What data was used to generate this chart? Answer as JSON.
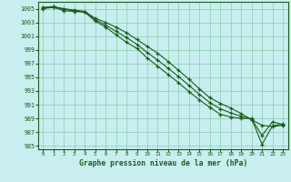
{
  "x": [
    0,
    1,
    2,
    3,
    4,
    5,
    6,
    7,
    8,
    9,
    10,
    11,
    12,
    13,
    14,
    15,
    16,
    17,
    18,
    19,
    20,
    21,
    22,
    23
  ],
  "line1": [
    1005.2,
    1005.3,
    1005.0,
    1004.8,
    1004.6,
    1003.6,
    1003.0,
    1002.3,
    1001.5,
    1000.5,
    999.5,
    998.5,
    997.3,
    996.0,
    994.7,
    993.3,
    992.0,
    991.2,
    990.5,
    989.7,
    988.8,
    988.0,
    987.8,
    988.0
  ],
  "line2": [
    1005.0,
    1005.2,
    1004.7,
    1004.6,
    1004.5,
    1003.2,
    1002.3,
    1001.2,
    1000.1,
    999.2,
    997.8,
    996.6,
    995.4,
    994.2,
    992.9,
    991.7,
    990.6,
    989.6,
    989.2,
    989.0,
    989.0,
    985.2,
    987.9,
    988.2
  ],
  "line3": [
    1005.1,
    1005.3,
    1004.9,
    1004.7,
    1004.5,
    1003.4,
    1002.6,
    1001.7,
    1000.8,
    999.8,
    998.6,
    997.5,
    996.3,
    995.1,
    993.8,
    992.5,
    991.3,
    990.4,
    989.8,
    989.3,
    988.9,
    986.5,
    988.5,
    988.1
  ],
  "bg_color": "#c8eef0",
  "grid_color": "#88ccaa",
  "line_color": "#1a5c1a",
  "title": "Graphe pression niveau de la mer (hPa)",
  "ylim": [
    984.5,
    1006.0
  ],
  "xlim": [
    -0.5,
    23.5
  ],
  "yticks": [
    985,
    987,
    989,
    991,
    993,
    995,
    997,
    999,
    1001,
    1003,
    1005
  ],
  "xticks": [
    0,
    1,
    2,
    3,
    4,
    5,
    6,
    7,
    8,
    9,
    10,
    11,
    12,
    13,
    14,
    15,
    16,
    17,
    18,
    19,
    20,
    21,
    22,
    23
  ]
}
